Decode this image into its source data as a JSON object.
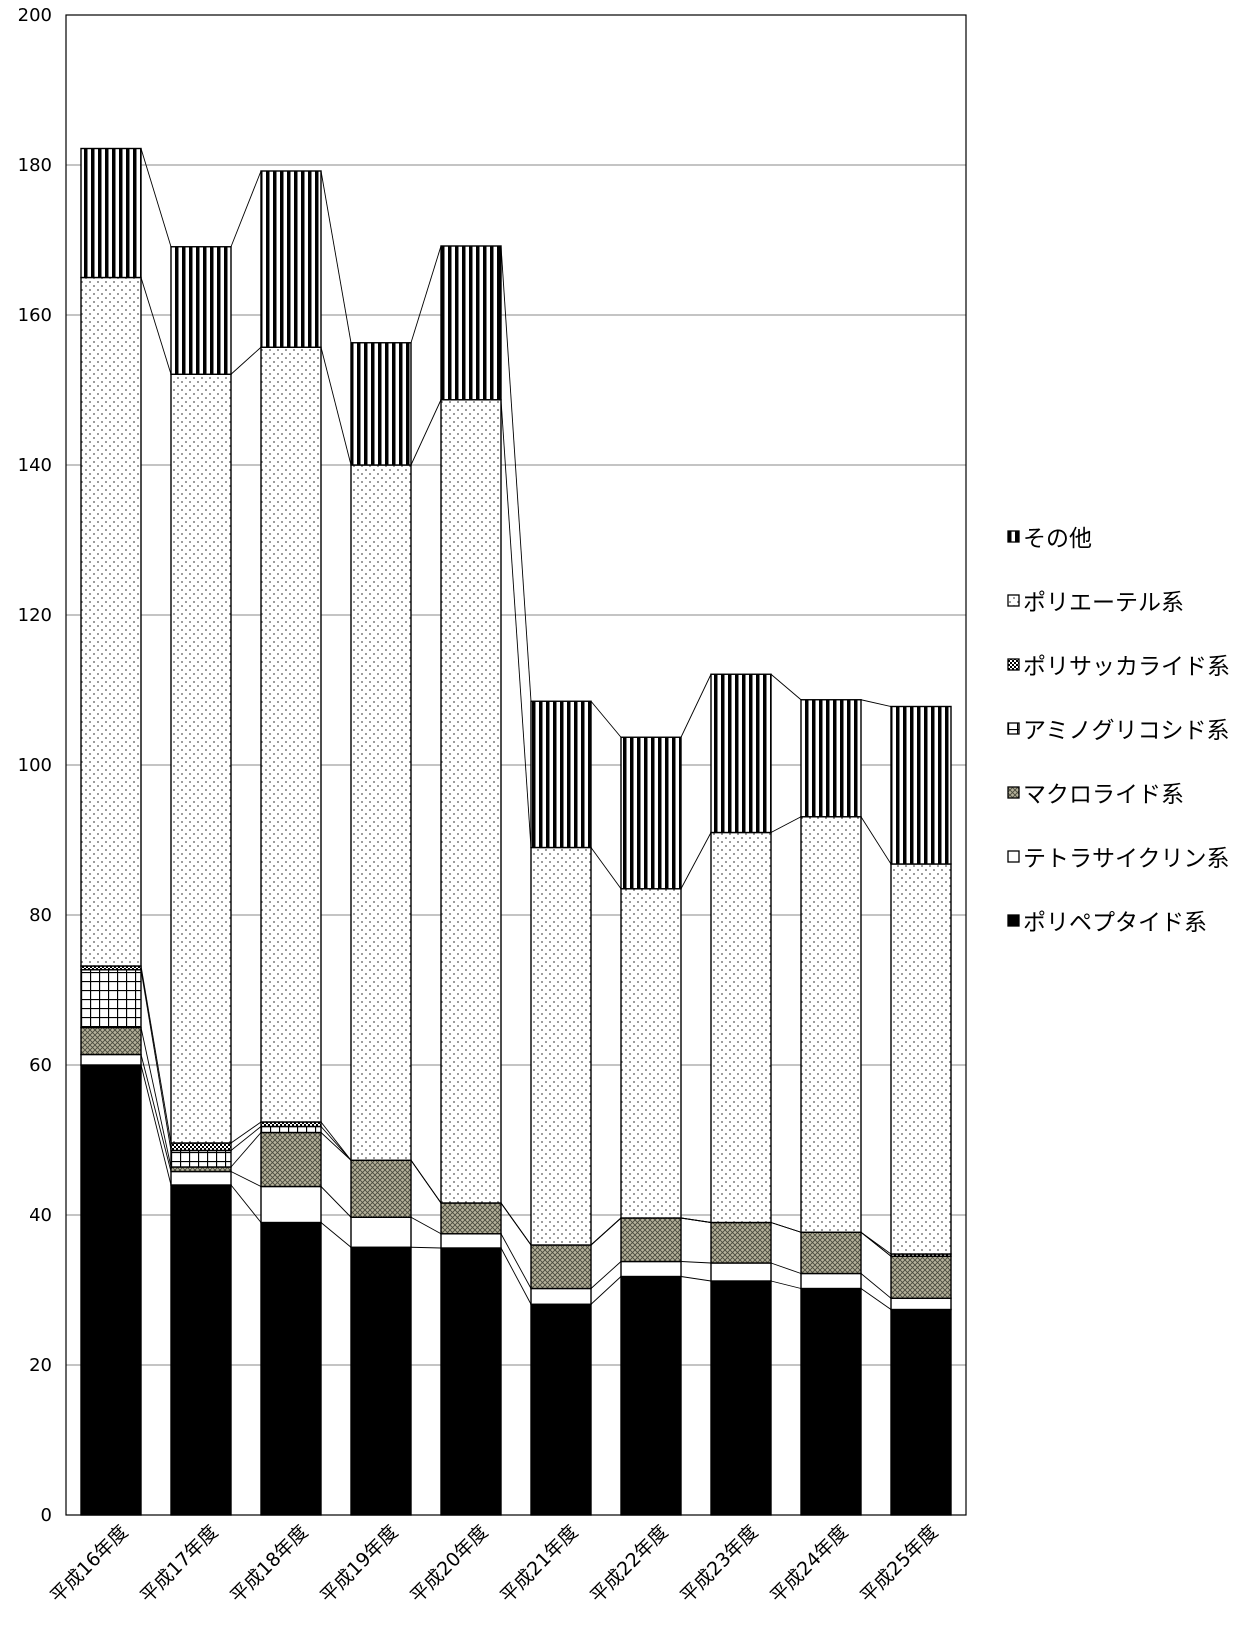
{
  "chart_data": {
    "type": "bar",
    "stacked": true,
    "categories": [
      "平成16年度",
      "平成17年度",
      "平成18年度",
      "平成19年度",
      "平成20年度",
      "平成21年度",
      "平成22年度",
      "平成23年度",
      "平成24年度",
      "平成25年度"
    ],
    "ylim": [
      0,
      200
    ],
    "yticks": [
      0,
      20,
      40,
      60,
      80,
      100,
      120,
      140,
      160,
      180,
      200
    ],
    "grid": true,
    "legend_position": "right",
    "series": [
      {
        "name": "ポリペプタイド系",
        "pattern": "solid",
        "values": [
          60,
          44,
          39,
          35.7,
          35.6,
          28.1,
          31.8,
          31.2,
          30.2,
          27.4
        ]
      },
      {
        "name": "テトラサイクリン系",
        "pattern": "white",
        "values": [
          1.4,
          1.8,
          4.8,
          4.0,
          1.9,
          2.1,
          2.0,
          2.4,
          2.0,
          1.5
        ]
      },
      {
        "name": "マクロライド系",
        "pattern": "hatch",
        "values": [
          3.6,
          0.6,
          7.2,
          7.6,
          4.1,
          5.8,
          5.8,
          5.4,
          5.5,
          5.6
        ]
      },
      {
        "name": "アミノグリコシド系",
        "pattern": "grid",
        "values": [
          7.7,
          2.2,
          0.8,
          0,
          0,
          0,
          0,
          0,
          0,
          0
        ]
      },
      {
        "name": "ポリサッカライド系",
        "pattern": "check",
        "values": [
          0.5,
          1.0,
          0.6,
          0,
          0,
          0,
          0,
          0,
          0,
          0.3
        ]
      },
      {
        "name": "ポリエーテル系",
        "pattern": "dots",
        "values": [
          91.8,
          102.5,
          103.3,
          92.7,
          107.1,
          53.0,
          43.9,
          52.0,
          55.4,
          52.0
        ]
      },
      {
        "name": "その他",
        "pattern": "stripe",
        "values": [
          17.2,
          17.0,
          23.5,
          16.3,
          20.5,
          19.5,
          20.2,
          21.1,
          15.6,
          21.0
        ]
      }
    ]
  }
}
